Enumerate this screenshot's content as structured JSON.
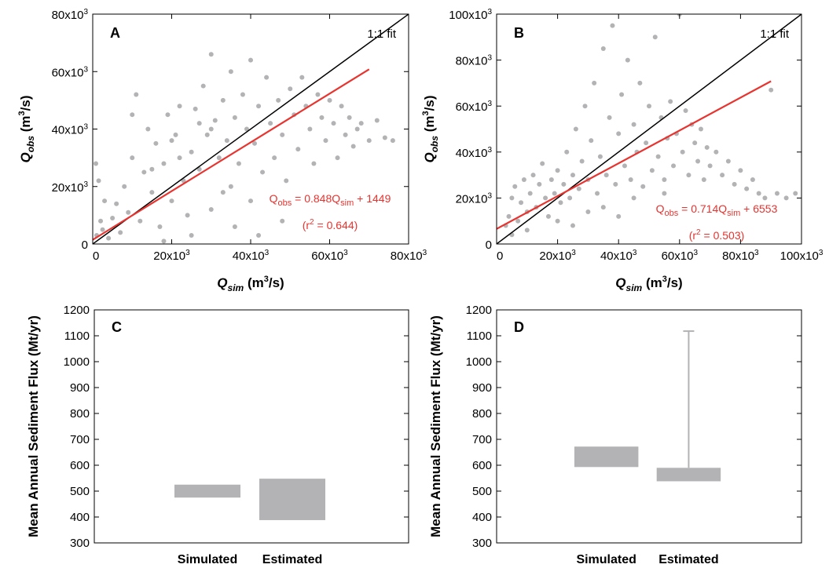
{
  "chart_data": [
    {
      "panel": "A",
      "type": "scatter",
      "title": "",
      "panel_label": "A",
      "xlabel": {
        "base": "Q",
        "sub": "sim",
        "unit_pre": "(m",
        "unit_sup": "3",
        "unit_post": "/s)"
      },
      "ylabel": {
        "base": "Q",
        "sub": "obs",
        "unit_pre": "(m",
        "unit_sup": "3",
        "unit_post": "/s)"
      },
      "xlim": [
        0,
        80000
      ],
      "ylim": [
        0,
        80000
      ],
      "x_ticks": [
        0,
        20000,
        40000,
        60000,
        80000
      ],
      "y_ticks": [
        0,
        20000,
        40000,
        60000,
        80000
      ],
      "x_tick_labels": [
        "0",
        "20x10",
        "40x10",
        "60x10",
        "80x10"
      ],
      "y_tick_labels": [
        "0",
        "20x10",
        "40x10",
        "60x10",
        "80x10"
      ],
      "tick_exponent": "3",
      "grid": false,
      "point_color": "#b3b3b5",
      "series": [
        {
          "name": "1:1 fit",
          "color": "#000000",
          "x": [
            0,
            80000
          ],
          "y": [
            0,
            80000
          ]
        },
        {
          "color": "#e8332f",
          "slope": 0.848,
          "intercept": 1449,
          "x": [
            0,
            70000
          ],
          "y": [
            1449,
            60809
          ]
        }
      ],
      "scatter_points": [
        [
          1000,
          3000
        ],
        [
          2000,
          8000
        ],
        [
          3000,
          15000
        ],
        [
          1500,
          22000
        ],
        [
          800,
          28000
        ],
        [
          2500,
          5000
        ],
        [
          4000,
          2000
        ],
        [
          5000,
          9000
        ],
        [
          6000,
          14000
        ],
        [
          7000,
          4000
        ],
        [
          8000,
          20000
        ],
        [
          9000,
          11000
        ],
        [
          10000,
          30000
        ],
        [
          10000,
          45000
        ],
        [
          11000,
          52000
        ],
        [
          12000,
          8000
        ],
        [
          13000,
          25000
        ],
        [
          14000,
          40000
        ],
        [
          15000,
          18000
        ],
        [
          16000,
          35000
        ],
        [
          17000,
          6000
        ],
        [
          18000,
          28000
        ],
        [
          19000,
          45000
        ],
        [
          20000,
          15000
        ],
        [
          21000,
          38000
        ],
        [
          22000,
          48000
        ],
        [
          23000,
          22000
        ],
        [
          24000,
          10000
        ],
        [
          25000,
          32000
        ],
        [
          26000,
          47000
        ],
        [
          27000,
          26000
        ],
        [
          28000,
          55000
        ],
        [
          29000,
          38000
        ],
        [
          30000,
          66000
        ],
        [
          30000,
          12000
        ],
        [
          31000,
          43000
        ],
        [
          32000,
          30000
        ],
        [
          33000,
          50000
        ],
        [
          34000,
          36000
        ],
        [
          35000,
          60000
        ],
        [
          35000,
          20000
        ],
        [
          36000,
          44000
        ],
        [
          37000,
          28000
        ],
        [
          38000,
          52000
        ],
        [
          39000,
          40000
        ],
        [
          40000,
          64000
        ],
        [
          40000,
          15000
        ],
        [
          41000,
          35000
        ],
        [
          42000,
          48000
        ],
        [
          43000,
          25000
        ],
        [
          44000,
          58000
        ],
        [
          45000,
          42000
        ],
        [
          46000,
          30000
        ],
        [
          47000,
          50000
        ],
        [
          48000,
          38000
        ],
        [
          49000,
          22000
        ],
        [
          50000,
          54000
        ],
        [
          51000,
          45000
        ],
        [
          52000,
          33000
        ],
        [
          53000,
          58000
        ],
        [
          54000,
          48000
        ],
        [
          55000,
          40000
        ],
        [
          56000,
          28000
        ],
        [
          57000,
          52000
        ],
        [
          58000,
          44000
        ],
        [
          59000,
          36000
        ],
        [
          60000,
          50000
        ],
        [
          61000,
          42000
        ],
        [
          62000,
          30000
        ],
        [
          63000,
          48000
        ],
        [
          64000,
          38000
        ],
        [
          65000,
          44000
        ],
        [
          66000,
          34000
        ],
        [
          67000,
          40000
        ],
        [
          68000,
          42000
        ],
        [
          70000,
          36000
        ],
        [
          72000,
          43000
        ],
        [
          74000,
          37000
        ],
        [
          76000,
          36000
        ],
        [
          36000,
          6000
        ],
        [
          42000,
          3000
        ],
        [
          48000,
          8000
        ],
        [
          25000,
          3000
        ],
        [
          18000,
          1000
        ],
        [
          30000,
          40000
        ],
        [
          33000,
          18000
        ],
        [
          27000,
          42000
        ],
        [
          22000,
          30000
        ],
        [
          20000,
          36000
        ],
        [
          15000,
          26000
        ]
      ]
    },
    {
      "panel": "B",
      "type": "scatter",
      "title": "",
      "panel_label": "B",
      "xlabel": {
        "base": "Q",
        "sub": "sim",
        "unit_pre": "(m",
        "unit_sup": "3",
        "unit_post": "/s)"
      },
      "ylabel": {
        "base": "Q",
        "sub": "obs",
        "unit_pre": "(m",
        "unit_sup": "3",
        "unit_post": "/s)"
      },
      "xlim": [
        0,
        100000
      ],
      "ylim": [
        0,
        100000
      ],
      "x_ticks": [
        0,
        20000,
        40000,
        60000,
        80000,
        100000
      ],
      "y_ticks": [
        0,
        20000,
        40000,
        60000,
        80000,
        100000
      ],
      "x_tick_labels": [
        "0",
        "20x10",
        "40x10",
        "60x10",
        "80x10",
        "100x10"
      ],
      "y_tick_labels": [
        "0",
        "20x10",
        "40x10",
        "60x10",
        "80x10",
        "100x10"
      ],
      "tick_exponent": "3",
      "grid": false,
      "point_color": "#b3b3b5",
      "series": [
        {
          "name": "1:1 fit",
          "color": "#000000",
          "x": [
            0,
            100000
          ],
          "y": [
            0,
            100000
          ]
        },
        {
          "color": "#e8332f",
          "slope": 0.714,
          "intercept": 6553,
          "x": [
            0,
            90000
          ],
          "y": [
            6553,
            70813
          ]
        }
      ],
      "scatter_points": [
        [
          3000,
          8000
        ],
        [
          4000,
          12000
        ],
        [
          5000,
          20000
        ],
        [
          6000,
          25000
        ],
        [
          7000,
          10000
        ],
        [
          8000,
          18000
        ],
        [
          9000,
          28000
        ],
        [
          10000,
          14000
        ],
        [
          11000,
          22000
        ],
        [
          12000,
          30000
        ],
        [
          13000,
          16000
        ],
        [
          14000,
          26000
        ],
        [
          15000,
          35000
        ],
        [
          16000,
          20000
        ],
        [
          17000,
          12000
        ],
        [
          18000,
          28000
        ],
        [
          19000,
          22000
        ],
        [
          20000,
          32000
        ],
        [
          21000,
          18000
        ],
        [
          22000,
          26000
        ],
        [
          23000,
          40000
        ],
        [
          24000,
          20000
        ],
        [
          25000,
          30000
        ],
        [
          26000,
          50000
        ],
        [
          27000,
          24000
        ],
        [
          28000,
          36000
        ],
        [
          29000,
          60000
        ],
        [
          30000,
          28000
        ],
        [
          31000,
          45000
        ],
        [
          32000,
          70000
        ],
        [
          33000,
          22000
        ],
        [
          34000,
          38000
        ],
        [
          35000,
          85000
        ],
        [
          36000,
          30000
        ],
        [
          37000,
          55000
        ],
        [
          38000,
          95000
        ],
        [
          39000,
          26000
        ],
        [
          40000,
          48000
        ],
        [
          41000,
          65000
        ],
        [
          42000,
          34000
        ],
        [
          43000,
          80000
        ],
        [
          44000,
          28000
        ],
        [
          45000,
          52000
        ],
        [
          46000,
          40000
        ],
        [
          47000,
          70000
        ],
        [
          48000,
          25000
        ],
        [
          49000,
          44000
        ],
        [
          50000,
          60000
        ],
        [
          51000,
          32000
        ],
        [
          52000,
          90000
        ],
        [
          53000,
          38000
        ],
        [
          54000,
          55000
        ],
        [
          55000,
          28000
        ],
        [
          56000,
          46000
        ],
        [
          57000,
          62000
        ],
        [
          58000,
          34000
        ],
        [
          59000,
          48000
        ],
        [
          60000,
          100000
        ],
        [
          61000,
          40000
        ],
        [
          62000,
          58000
        ],
        [
          63000,
          30000
        ],
        [
          64000,
          52000
        ],
        [
          65000,
          44000
        ],
        [
          66000,
          36000
        ],
        [
          67000,
          50000
        ],
        [
          68000,
          28000
        ],
        [
          69000,
          42000
        ],
        [
          70000,
          34000
        ],
        [
          72000,
          40000
        ],
        [
          74000,
          30000
        ],
        [
          76000,
          36000
        ],
        [
          78000,
          26000
        ],
        [
          80000,
          32000
        ],
        [
          82000,
          24000
        ],
        [
          84000,
          28000
        ],
        [
          86000,
          22000
        ],
        [
          88000,
          20000
        ],
        [
          90000,
          67000
        ],
        [
          92000,
          22000
        ],
        [
          95000,
          20000
        ],
        [
          98000,
          22000
        ],
        [
          5000,
          4000
        ],
        [
          10000,
          6000
        ],
        [
          20000,
          10000
        ],
        [
          30000,
          14000
        ],
        [
          40000,
          12000
        ],
        [
          25000,
          8000
        ],
        [
          35000,
          16000
        ],
        [
          45000,
          20000
        ],
        [
          55000,
          22000
        ]
      ],
      "annotation_labels": []
    },
    {
      "panel": "C",
      "type": "box",
      "panel_label": "C",
      "ylabel": "Mean Annual Sediment Flux (Mt/yr)",
      "ylim": [
        300,
        1200
      ],
      "y_ticks": [
        300,
        400,
        500,
        600,
        700,
        800,
        900,
        1000,
        1100,
        1200
      ],
      "categories": [
        "Simulated",
        "Estimated"
      ],
      "box_color": "#b3b3b5",
      "boxes": [
        {
          "category": "Simulated",
          "low": 475,
          "high": 525
        },
        {
          "category": "Estimated",
          "low": 388,
          "high": 548
        }
      ]
    },
    {
      "panel": "D",
      "type": "box",
      "panel_label": "D",
      "ylabel": "Mean Annual Sediment Flux (Mt/yr)",
      "ylim": [
        300,
        1200
      ],
      "y_ticks": [
        300,
        400,
        500,
        600,
        700,
        800,
        900,
        1000,
        1100,
        1200
      ],
      "categories": [
        "Simulated",
        "Estimated"
      ],
      "box_color": "#b3b3b5",
      "boxes": [
        {
          "category": "Simulated",
          "low": 593,
          "high": 672
        },
        {
          "category": "Estimated",
          "low": 538,
          "high": 590,
          "whisker_high": 1118
        }
      ]
    }
  ],
  "labels": {
    "fit_label": "1:1 fit",
    "eq_a_lhs_base": "Q",
    "eq_a_lhs_sub": "obs",
    "eq_a_mid": " = 0.848Q",
    "eq_a_sub": "sim",
    "eq_a_rhs": " + 1449",
    "r2_a_pre": "(r",
    "r2_a_sup": "2",
    "r2_a_post": " = 0.644)",
    "eq_b_lhs_base": "Q",
    "eq_b_lhs_sub": "obs",
    "eq_b_mid": " = 0.714Q",
    "eq_b_sub": "sim",
    "eq_b_rhs": " + 6553",
    "r2_b_pre": "(r",
    "r2_b_sup": "2",
    "r2_b_post": " = 0.503)"
  }
}
